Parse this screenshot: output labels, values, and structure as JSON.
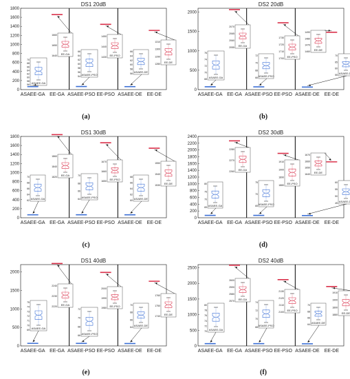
{
  "colors": {
    "blue": "#3b6fd6",
    "red": "#d9304a",
    "axis": "#333333",
    "inset": "#555555"
  },
  "chart_data": [
    {
      "id": "a",
      "type": "boxplot",
      "title": "DS1 20dB",
      "caption": "(a)",
      "categories": [
        "ASAEE-GA",
        "EE-GA",
        "ASAEE-PSO",
        "EE-PSO",
        "ASAEE-DE",
        "EE-DE"
      ],
      "ylim": [
        0,
        1800
      ],
      "yticks": [
        0,
        200,
        400,
        600,
        800,
        1000,
        1200,
        1400,
        1600,
        1800
      ],
      "values": [
        65,
        1660,
        68,
        1445,
        65,
        1310
      ],
      "insets": [
        {
          "label": "ASAEE-GA",
          "color": "blue",
          "ticks": [
            "70",
            "68",
            "66",
            "64",
            "62",
            "60",
            "58",
            "56"
          ],
          "target": 0
        },
        {
          "label": "EE-GA",
          "color": "red",
          "ticks": [
            "1660",
            "1650",
            "1640"
          ],
          "target": 1
        },
        {
          "label": "ASAEE-PSO",
          "color": "blue",
          "ticks": [
            "66",
            "64",
            "62",
            "60",
            "58",
            "56",
            "54"
          ],
          "target": 2
        },
        {
          "label": "EE-PSO",
          "color": "red",
          "ticks": [
            "1450",
            "1440",
            "1430"
          ],
          "target": 3
        },
        {
          "label": "ASAEE-DE",
          "color": "blue",
          "ticks": [
            "66",
            "64",
            "62",
            "60",
            "58",
            "56"
          ],
          "target": 4
        },
        {
          "label": "EE-DE",
          "color": "red",
          "ticks": [
            "1310",
            "1300",
            "1290",
            "1280"
          ],
          "target": 5
        }
      ]
    },
    {
      "id": "b",
      "type": "boxplot",
      "title": "DS2 20dB",
      "caption": "(b)",
      "categories": [
        "ASAEE-GA",
        "EE-GA",
        "ASAEE-PSO",
        "EE-PSO",
        "ASAEE-DE",
        "EE-DE"
      ],
      "ylim": [
        0,
        2100
      ],
      "yticks": [
        0,
        500,
        1000,
        1500,
        2000
      ],
      "values": [
        72,
        2065,
        70,
        1725,
        65,
        1480
      ],
      "insets": [
        {
          "label": "ASAEE-GA",
          "color": "blue",
          "ticks": [
            "76",
            "74",
            "72",
            "70",
            "68"
          ],
          "target": 0
        },
        {
          "label": "EE-GA",
          "color": "red",
          "ticks": [
            "2070",
            "2065",
            "2060",
            "2055"
          ],
          "target": 1
        },
        {
          "label": "ASAEE-PSO",
          "color": "blue",
          "ticks": [
            "72",
            "70",
            "68",
            "66"
          ],
          "target": 2
        },
        {
          "label": "EE-PSO",
          "color": "red",
          "ticks": [
            "1730",
            "1720",
            "1710",
            "1700"
          ],
          "target": 3
        },
        {
          "label": "EE-DE",
          "color": "red",
          "ticks": [
            "1490",
            "1480",
            "1470",
            "1460"
          ],
          "target": 5
        },
        {
          "label": "ASAEE-DE",
          "color": "blue",
          "ticks": [
            "70",
            "65",
            "60",
            "55"
          ],
          "target": 4
        }
      ]
    },
    {
      "id": "c",
      "type": "boxplot",
      "title": "DS1 30dB",
      "caption": "(c)",
      "categories": [
        "ASAEE-GA",
        "EE-GA",
        "ASAEE-PSO",
        "EE-PSO",
        "ASAEE-DE",
        "EE-DE"
      ],
      "ylim": [
        0,
        1800
      ],
      "yticks": [
        0,
        200,
        400,
        600,
        800,
        1000,
        1200,
        1400,
        1600,
        1800
      ],
      "values": [
        65,
        1840,
        66,
        1660,
        65,
        1540
      ],
      "insets": [
        {
          "label": "ASAEE-GA",
          "color": "blue",
          "ticks": [
            "70",
            "68",
            "66",
            "64",
            "62"
          ],
          "target": 0
        },
        {
          "label": "EE-GA",
          "color": "red",
          "ticks": [
            "1860",
            "1840",
            "1820"
          ],
          "target": 1
        },
        {
          "label": "ASAEE-PSO",
          "color": "blue",
          "ticks": [
            "70",
            "68",
            "66",
            "64"
          ],
          "target": 2
        },
        {
          "label": "EE-PSO",
          "color": "red",
          "ticks": [
            "1670",
            "1660",
            "1650"
          ],
          "target": 3
        },
        {
          "label": "ASAEE-DE",
          "color": "blue",
          "ticks": [
            "68",
            "66",
            "64",
            "62",
            "60"
          ],
          "target": 4
        },
        {
          "label": "EE-DE",
          "color": "red",
          "ticks": [
            "1550",
            "1540",
            "1530"
          ],
          "target": 5
        }
      ]
    },
    {
      "id": "d",
      "type": "boxplot",
      "title": "DS2 30dB",
      "caption": "(d)",
      "categories": [
        "ASAEE-GA",
        "EE-GA",
        "ASAEE-PSO",
        "EE-PSO",
        "ASAEE-DE",
        "EE-DE"
      ],
      "ylim": [
        0,
        2400
      ],
      "yticks": [
        0,
        200,
        400,
        600,
        800,
        1000,
        1200,
        1400,
        1600,
        1800,
        2000,
        2200,
        2400
      ],
      "values": [
        70,
        2270,
        70,
        1900,
        65,
        1650
      ],
      "insets": [
        {
          "label": "ASAEE-GA",
          "color": "blue",
          "ticks": [
            "80",
            "75",
            "70",
            "65"
          ],
          "target": 0
        },
        {
          "label": "EE-GA",
          "color": "red",
          "ticks": [
            "2280",
            "2270",
            "2260"
          ],
          "target": 1
        },
        {
          "label": "ASAEE-PSO",
          "color": "blue",
          "ticks": [
            "75",
            "70",
            "65"
          ],
          "target": 2
        },
        {
          "label": "EE-PSO",
          "color": "red",
          "ticks": [
            "1910",
            "1900",
            "1890",
            "1880"
          ],
          "target": 3
        },
        {
          "label": "EE-DE",
          "color": "red",
          "ticks": [
            "1670",
            "1660",
            "1650",
            "1640"
          ],
          "target": 5
        },
        {
          "label": "ASAEE-DE",
          "color": "blue",
          "ticks": [
            "60",
            "55",
            "50",
            "45"
          ],
          "target": 4
        }
      ]
    },
    {
      "id": "e",
      "type": "boxplot",
      "title": "DS1 40dB",
      "caption": "(e)",
      "categories": [
        "ASAEE-GA",
        "EE-GA",
        "ASAEE-PSO",
        "EE-PSO",
        "ASAEE-DE",
        "EE-DE"
      ],
      "ylim": [
        0,
        2200
      ],
      "yticks": [
        0,
        500,
        1000,
        1500,
        2000
      ],
      "values": [
        70,
        2230,
        68,
        1990,
        65,
        1750
      ],
      "insets": [
        {
          "label": "ASAEE-GA",
          "color": "blue",
          "ticks": [
            "75",
            "74",
            "73",
            "72",
            "71",
            "70",
            "69"
          ],
          "target": 0
        },
        {
          "label": "EE-GA",
          "color": "red",
          "ticks": [
            "2240",
            "2230",
            "2220"
          ],
          "target": 1
        },
        {
          "label": "ASAEE-PSO",
          "color": "blue",
          "ticks": [
            "72",
            "70",
            "68",
            "66"
          ],
          "target": 2
        },
        {
          "label": "EE-PSO",
          "color": "red",
          "ticks": [
            "2000",
            "1990",
            "1980"
          ],
          "target": 3
        },
        {
          "label": "ASAEE-DE",
          "color": "blue",
          "ticks": [
            "70",
            "68",
            "66",
            "64"
          ],
          "target": 4
        },
        {
          "label": "EE-DE",
          "color": "red",
          "ticks": [
            "1760",
            "1750",
            "1740"
          ],
          "target": 5
        }
      ]
    },
    {
      "id": "f",
      "type": "boxplot",
      "title": "DS2 40dB",
      "caption": "(f)",
      "categories": [
        "ASAEE-GA",
        "EE-GA",
        "ASAEE-PSO",
        "EE-PSO",
        "ASAEE-DE",
        "EE-DE"
      ],
      "ylim": [
        0,
        2600
      ],
      "yticks": [
        0,
        500,
        1000,
        1500,
        2000,
        2500
      ],
      "values": [
        72,
        2580,
        72,
        2120,
        68,
        1900
      ],
      "insets": [
        {
          "label": "ASAEE-GA",
          "color": "blue",
          "ticks": [
            "80",
            "78",
            "76",
            "74",
            "72",
            "70"
          ],
          "target": 0
        },
        {
          "label": "EE-GA",
          "color": "red",
          "ticks": [
            "2600",
            "2590",
            "2580",
            "2570"
          ],
          "target": 1
        },
        {
          "label": "ASAEE-PSO",
          "color": "blue",
          "ticks": [
            "74",
            "72",
            "70",
            "68"
          ],
          "target": 2
        },
        {
          "label": "EE-PSO",
          "color": "red",
          "ticks": [
            "2130",
            "2120",
            "2110",
            "2100"
          ],
          "target": 3
        },
        {
          "label": "ASAEE-DE",
          "color": "blue",
          "ticks": [
            "70",
            "68",
            "66",
            "64"
          ],
          "target": 4
        },
        {
          "label": "EE-DE",
          "color": "red",
          "ticks": [
            "1910",
            "1900",
            "1890",
            "1880"
          ],
          "target": 5
        }
      ]
    }
  ]
}
